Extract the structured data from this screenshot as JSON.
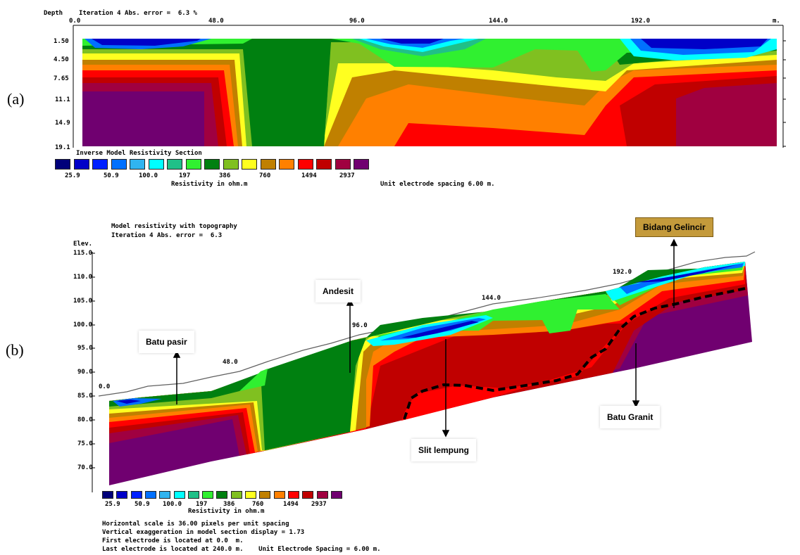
{
  "panel_a": {
    "label": "(a)",
    "header_left": "Depth",
    "header_iter": "Iteration 4 Abs. error =  6.3 %",
    "x_ticks": [
      "0.0",
      "48.0",
      "96.0",
      "144.0",
      "192.0"
    ],
    "x_unit": "m.",
    "depth_ticks": [
      "1.50",
      "4.50",
      "7.65",
      "11.1",
      "14.9",
      "19.1"
    ],
    "section_title": "Inverse Model Resistivity Section",
    "scale_values": [
      "25.9",
      "50.9",
      "100.0",
      "197",
      "386",
      "760",
      "1494",
      "2937"
    ],
    "scale_caption": "Resistivity in ohm.m",
    "spacing_note": "Unit electrode spacing 6.00 m."
  },
  "panel_b": {
    "label": "(b)",
    "title_line1": "Model resistivity with topography",
    "title_line2": "Iteration 4 Abs. error =  6.3",
    "elev_label": "Elev.",
    "elev_ticks": [
      "115.0",
      "110.0",
      "105.0",
      "100.0",
      "95.0",
      "90.0",
      "85.0",
      "80.0",
      "75.0",
      "70.0"
    ],
    "x_ticks": [
      "0.0",
      "48.0",
      "96.0",
      "144.0",
      "192.0"
    ],
    "scale_values": [
      "25.9",
      "50.9",
      "100.0",
      "197",
      "386",
      "760",
      "1494",
      "2937"
    ],
    "scale_caption": "Resistivity in ohm.m",
    "notes": [
      "Horizontal scale is 36.00 pixels per unit spacing",
      "Vertical exaggeration in model section display = 1.73",
      "First electrode is located at 0.0  m.",
      "Last electrode is located at 240.0 m.    Unit Electrode Spacing = 6.00 m."
    ],
    "annotations": {
      "batu_pasir": "Batu pasir",
      "andesit": "Andesit",
      "bidang_gelincir": "Bidang Gelincir",
      "slit_lempung": "Slit lempung",
      "batu_granit": "Batu Granit"
    }
  },
  "colors": {
    "scale": [
      "#00007a",
      "#0000c8",
      "#0020ff",
      "#0070ff",
      "#30b4f0",
      "#00ffff",
      "#20c088",
      "#30f030",
      "#008010",
      "#80c020",
      "#ffff20",
      "#c08000",
      "#ff8000",
      "#ff0000",
      "#c00000",
      "#a00040",
      "#700070"
    ],
    "gold_label": "#c49a3b"
  }
}
